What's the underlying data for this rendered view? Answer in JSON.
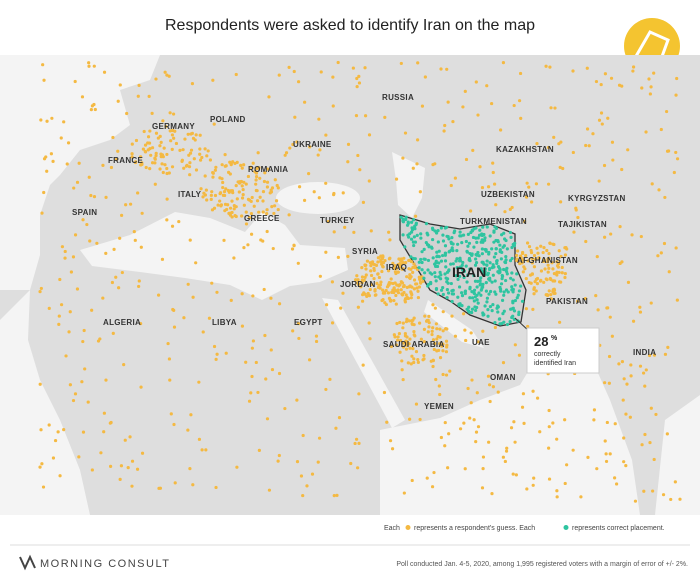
{
  "header": {
    "title": "Respondents were asked to identify Iran on the map"
  },
  "map": {
    "labels": [
      "RUSSIA",
      "GERMANY",
      "POLAND",
      "UKRAINE",
      "FRANCE",
      "ROMANIA",
      "ITALY",
      "SPAIN",
      "GREECE",
      "TURKEY",
      "KAZAKHSTAN",
      "UZBEKISTAN",
      "KYRGYZSTAN",
      "TURKMENISTAN",
      "TAJIKISTAN",
      "SYRIA",
      "IRAQ",
      "JORDAN",
      "AFGHANISTAN",
      "PAKISTAN",
      "ALGERIA",
      "LIBYA",
      "EGYPT",
      "SAUDI ARABIA",
      "UAE",
      "OMAN",
      "YEMEN",
      "INDIA"
    ],
    "highlight": "IRAN"
  },
  "annotation": {
    "number": "28",
    "unit": "%",
    "line1": "correctly",
    "line2": "identified Iran"
  },
  "legend": {
    "text1": "Each",
    "text2": "represents a respondent's guess. Each",
    "text3": "represents correct placement."
  },
  "footer": {
    "brand": "MORNING CONSULT",
    "note": "Poll conducted Jan. 4-5, 2020, among 1,995 registered voters with a margin of error of +/- 2%."
  }
}
